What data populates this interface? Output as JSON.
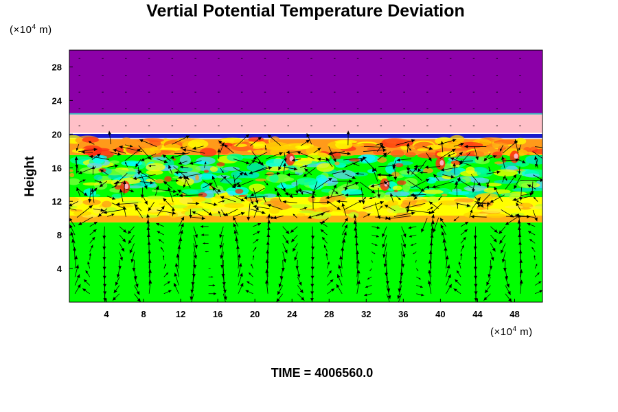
{
  "chart_data": {
    "type": "heatmap",
    "title": "Vertial Potential Temperature Deviation",
    "ylabel": "Height",
    "x_unit": {
      "prefix": "(×10",
      "exp": "4",
      "suffix": " m)"
    },
    "y_unit": {
      "prefix": "(×10",
      "exp": "4",
      "suffix": " m)"
    },
    "xlim": [
      0,
      51
    ],
    "ylim": [
      0,
      30
    ],
    "x_ticks": [
      4,
      8,
      12,
      16,
      20,
      24,
      28,
      32,
      36,
      40,
      44,
      48
    ],
    "y_ticks": [
      4,
      8,
      12,
      16,
      20,
      24,
      28
    ],
    "time_label": "TIME = 4006560.0",
    "overlay": "wind vectors",
    "bands": [
      {
        "y0": 0,
        "y1": 9.5,
        "field": "green (near-zero deviation) with strong vertical circulation cells"
      },
      {
        "y0": 9.5,
        "y1": 12.5,
        "field": "yellow-orange layer"
      },
      {
        "y0": 12.5,
        "y1": 17.5,
        "field": "green-cyan turbulent layer with red patches"
      },
      {
        "y0": 17.5,
        "y1": 19.5,
        "field": "red-orange layer"
      },
      {
        "y0": 19.5,
        "y1": 20.1,
        "field": "blue-violet thin layer"
      },
      {
        "y0": 20.1,
        "y1": 22.4,
        "field": "pink layer"
      },
      {
        "y0": 22.4,
        "y1": 30,
        "field": "purple upper region"
      }
    ],
    "colors": {
      "purple": "#8c00a8",
      "pink": "#ffc0c8",
      "blue": "#1a1acc",
      "red": "#ff2a14",
      "orange": "#ff9a1a",
      "yellow": "#ffff00",
      "green": "#00ff00",
      "cyan": "#00ffff",
      "arrow": "#000000"
    }
  }
}
